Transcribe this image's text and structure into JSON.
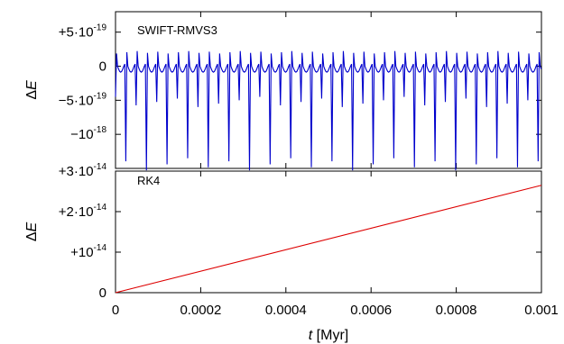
{
  "chart_data": [
    {
      "type": "line",
      "panel_label": "SWIFT-RMVS3",
      "ylabel_symbol": "ΔE",
      "xlim": [
        0,
        0.001
      ],
      "ylim": [
        -1.5e-18,
        8e-19
      ],
      "yticks": [
        {
          "value": 5e-19,
          "label": "+5·10",
          "exp": "-19"
        },
        {
          "value": 0,
          "label": "0",
          "exp": ""
        },
        {
          "value": -5e-19,
          "label": "−5·10",
          "exp": "-19"
        },
        {
          "value": -1e-18,
          "label": "−10",
          "exp": "-18"
        }
      ],
      "series": [
        {
          "color": "#0000cc",
          "period": 2.42e-05,
          "baseline": 0,
          "amplitude_high": 2.2e-19,
          "amplitude_low": -5e-19,
          "spike_min_range": [
            -1.55e-18,
            -1e-18
          ],
          "spike_every": 2
        }
      ]
    },
    {
      "type": "line",
      "panel_label": "RK4",
      "ylabel_symbol": "ΔE",
      "xlabel_symbol": "t",
      "xlabel_unit": "[Myr]",
      "xlim": [
        0,
        0.001
      ],
      "ylim": [
        0,
        3e-14
      ],
      "xticks": [
        "0",
        "0.0002",
        "0.0004",
        "0.0006",
        "0.0008",
        "0.001"
      ],
      "yticks": [
        {
          "value": 3e-14,
          "label": "+3·10",
          "exp": "-14"
        },
        {
          "value": 2e-14,
          "label": "+2·10",
          "exp": "-14"
        },
        {
          "value": 1e-14,
          "label": "+10",
          "exp": "-14"
        },
        {
          "value": 0,
          "label": "0",
          "exp": ""
        }
      ],
      "series": [
        {
          "color": "#dd0000",
          "x": [
            0,
            0.001
          ],
          "y": [
            0,
            2.65e-14
          ]
        }
      ]
    }
  ]
}
